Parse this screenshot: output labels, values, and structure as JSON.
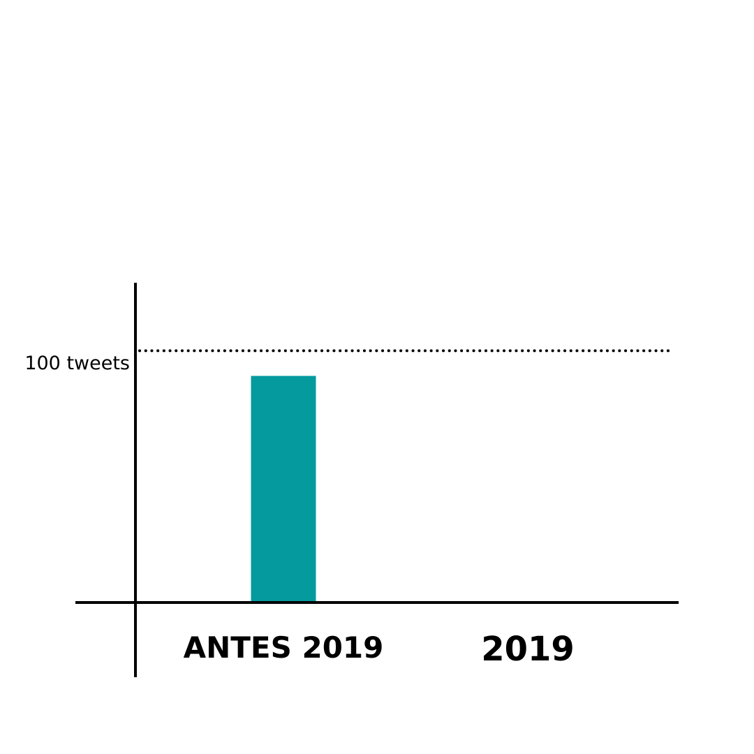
{
  "chart_data": {
    "type": "bar",
    "categories": [
      "ANTES 2019",
      "2019"
    ],
    "values": [
      90,
      null
    ],
    "ylim": [
      0,
      127
    ],
    "reference_line": {
      "value": 100,
      "label": "100 tweets",
      "style": "dotted"
    },
    "bar_color": "#049a9e",
    "axis_color": "#000000",
    "grid": false,
    "legend": "none"
  }
}
